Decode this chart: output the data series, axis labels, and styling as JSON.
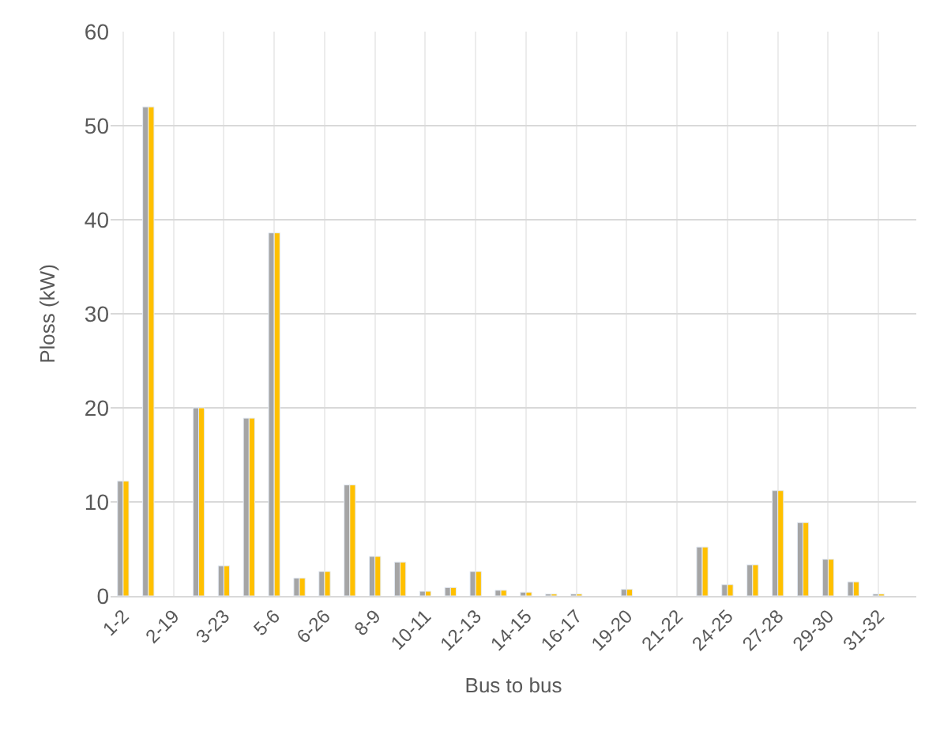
{
  "chart_data": {
    "type": "bar",
    "xlabel": "Bus to bus",
    "ylabel": "Ploss (kW)",
    "categories": [
      "1-2",
      null,
      "2-19",
      null,
      "3-23",
      null,
      "5-6",
      null,
      "6-26",
      null,
      "8-9",
      null,
      "10-11",
      null,
      "12-13",
      null,
      "14-15",
      null,
      "16-17",
      null,
      "19-20",
      null,
      "21-22",
      null,
      "24-25",
      null,
      "27-28",
      null,
      "29-30",
      null,
      "31-32",
      null
    ],
    "series": [
      {
        "color": "#a5a5a5",
        "values": [
          12.2,
          52,
          null,
          20,
          3.2,
          18.9,
          38.6,
          1.9,
          2.6,
          11.8,
          4.2,
          3.6,
          0.5,
          0.9,
          2.6,
          0.6,
          0.4,
          0.2,
          0.2,
          null,
          0.7,
          null,
          null,
          5.2,
          1.2,
          3.3,
          11.2,
          7.8,
          3.9,
          1.5,
          0.2,
          null
        ]
      },
      {
        "color": "#ffc000",
        "values": [
          12.2,
          52,
          null,
          20,
          3.2,
          18.9,
          38.6,
          1.9,
          2.6,
          11.8,
          4.2,
          3.6,
          0.5,
          0.9,
          2.6,
          0.6,
          0.4,
          0.2,
          0.2,
          null,
          0.7,
          null,
          null,
          5.2,
          1.2,
          3.3,
          11.2,
          7.8,
          3.9,
          1.5,
          0.2,
          null
        ]
      }
    ],
    "ylim": [
      0,
      60
    ],
    "yticks": [
      0,
      10,
      20,
      30,
      40,
      50,
      60
    ],
    "grid": true
  }
}
